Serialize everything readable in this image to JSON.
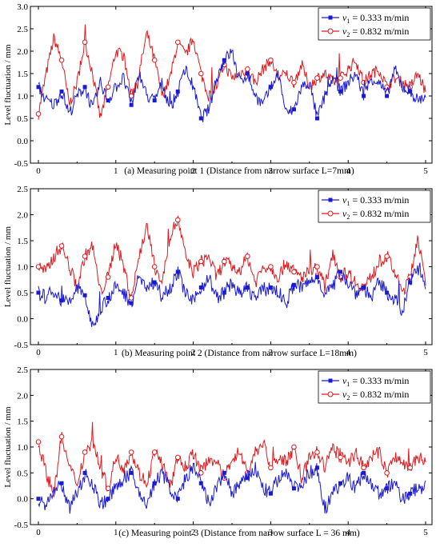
{
  "charts": [
    {
      "caption": "(a) Measuring point 1 (Distance from narrow surface L=7mm)",
      "ylabel": "Level fluctuation / mm",
      "xlim": [
        0,
        5
      ],
      "ylim": [
        -0.5,
        3.0
      ],
      "yticks": [
        "3.0",
        "2.5",
        "2.0",
        "1.5",
        "1.0",
        "0.5",
        "0.0",
        "-0.5"
      ],
      "xticks": [
        "0",
        "1",
        "2",
        "3",
        "4",
        "5"
      ]
    },
    {
      "caption": "(b) Measuring point 2 (Distance from narrow surface L=18mm)",
      "ylabel": "Level fluctuation / mm",
      "xlim": [
        0,
        5
      ],
      "ylim": [
        -0.5,
        2.5
      ],
      "yticks": [
        "2.5",
        "2.0",
        "1.5",
        "1.0",
        "0.5",
        "0.0",
        "-0.5"
      ],
      "xticks": [
        "0",
        "1",
        "2",
        "3",
        "4",
        "5"
      ]
    },
    {
      "caption": "(c) Measuring point 3 (Distance from narrow surface L = 36 mm)",
      "ylabel": "Level fluctuation / mm",
      "xlim": [
        0,
        5
      ],
      "ylim": [
        -0.5,
        2.5
      ],
      "yticks": [
        "2.5",
        "2.0",
        "1.5",
        "1.0",
        "0.5",
        "0.0",
        "-0.5"
      ],
      "xticks": [
        "0",
        "1",
        "2",
        "3",
        "4",
        "5"
      ]
    }
  ],
  "legend": {
    "v1_symbol": "v",
    "v1_sub": "1",
    "v1_value": " = 0.333 m/min",
    "v2_symbol": "v",
    "v2_sub": "2",
    "v2_value": " = 0.832 m/min"
  },
  "colors": {
    "v1": "#1a1ad6",
    "v2": "#e0191e"
  },
  "chart_data": [
    {
      "type": "line",
      "xlim": [
        0,
        5
      ],
      "ylim": [
        -0.5,
        3.0
      ],
      "series": [
        {
          "name": "v1 = 0.333 m/min",
          "x": [
            0,
            0.1,
            0.2,
            0.3,
            0.4,
            0.5,
            0.6,
            0.7,
            0.8,
            0.9,
            1.0,
            1.1,
            1.2,
            1.3,
            1.4,
            1.5,
            1.6,
            1.7,
            1.8,
            1.9,
            2.0,
            2.1,
            2.2,
            2.3,
            2.4,
            2.5,
            2.6,
            2.7,
            2.8,
            2.9,
            3.0,
            3.1,
            3.2,
            3.3,
            3.4,
            3.5,
            3.6,
            3.7,
            3.8,
            3.9,
            4.0,
            4.1,
            4.2,
            4.3,
            4.4,
            4.5,
            4.6,
            4.7,
            4.8,
            4.9,
            5.0
          ],
          "y": [
            1.2,
            0.9,
            0.8,
            1.1,
            0.6,
            1.0,
            1.2,
            0.7,
            1.3,
            0.9,
            1.2,
            1.4,
            0.8,
            1.5,
            1.0,
            0.9,
            1.3,
            0.7,
            1.1,
            1.6,
            1.2,
            0.5,
            0.7,
            1.4,
            1.8,
            2.0,
            1.3,
            1.5,
            1.0,
            0.8,
            1.2,
            1.5,
            0.6,
            0.7,
            1.2,
            1.3,
            0.5,
            1.0,
            1.4,
            1.1,
            1.3,
            1.5,
            1.0,
            1.4,
            1.3,
            1.0,
            1.6,
            1.2,
            1.1,
            0.9,
            1.0
          ]
        },
        {
          "name": "v2 = 0.832 m/min",
          "x": [
            0,
            0.1,
            0.2,
            0.3,
            0.4,
            0.5,
            0.6,
            0.7,
            0.8,
            0.9,
            1.0,
            1.1,
            1.2,
            1.3,
            1.4,
            1.5,
            1.6,
            1.7,
            1.8,
            1.9,
            2.0,
            2.1,
            2.2,
            2.3,
            2.4,
            2.5,
            2.6,
            2.7,
            2.8,
            2.9,
            3.0,
            3.1,
            3.2,
            3.3,
            3.4,
            3.5,
            3.6,
            3.7,
            3.8,
            3.9,
            4.0,
            4.1,
            4.2,
            4.3,
            4.4,
            4.5,
            4.6,
            4.7,
            4.8,
            4.9,
            5.0
          ],
          "y": [
            0.6,
            1.5,
            2.3,
            1.8,
            0.8,
            1.3,
            2.2,
            1.5,
            0.5,
            1.2,
            2.0,
            1.9,
            1.0,
            1.5,
            2.4,
            1.8,
            1.0,
            1.4,
            2.2,
            1.9,
            2.3,
            1.5,
            1.0,
            1.2,
            1.7,
            1.4,
            1.5,
            1.6,
            1.3,
            1.6,
            1.8,
            1.4,
            1.5,
            1.3,
            1.7,
            1.2,
            1.4,
            1.5,
            1.3,
            1.4,
            1.6,
            1.8,
            1.3,
            1.5,
            1.6,
            1.2,
            1.4,
            1.3,
            1.2,
            1.5,
            1.1
          ]
        }
      ]
    },
    {
      "type": "line",
      "xlim": [
        0,
        5
      ],
      "ylim": [
        -0.5,
        2.5
      ],
      "series": [
        {
          "name": "v1 = 0.333 m/min",
          "x": [
            0,
            0.1,
            0.2,
            0.3,
            0.4,
            0.5,
            0.6,
            0.7,
            0.8,
            0.9,
            1.0,
            1.1,
            1.2,
            1.3,
            1.4,
            1.5,
            1.6,
            1.7,
            1.8,
            1.9,
            2.0,
            2.1,
            2.2,
            2.3,
            2.4,
            2.5,
            2.6,
            2.7,
            2.8,
            2.9,
            3.0,
            3.1,
            3.2,
            3.3,
            3.4,
            3.5,
            3.6,
            3.7,
            3.8,
            3.9,
            4.0,
            4.1,
            4.2,
            4.3,
            4.4,
            4.5,
            4.6,
            4.7,
            4.8,
            4.9,
            5.0
          ],
          "y": [
            0.5,
            0.4,
            0.55,
            0.35,
            0.3,
            0.6,
            0.45,
            -0.2,
            0.2,
            0.4,
            0.6,
            0.5,
            0.3,
            0.8,
            0.6,
            0.7,
            0.5,
            0.6,
            0.9,
            0.5,
            0.3,
            0.6,
            0.8,
            0.4,
            0.5,
            0.7,
            0.45,
            0.6,
            0.4,
            0.55,
            0.6,
            0.5,
            0.3,
            0.65,
            0.6,
            0.7,
            0.8,
            0.5,
            0.6,
            0.9,
            0.7,
            0.5,
            0.6,
            0.4,
            0.7,
            0.5,
            0.4,
            0.1,
            0.7,
            1.1,
            0.6
          ]
        },
        {
          "name": "v2 = 0.832 m/min",
          "x": [
            0,
            0.1,
            0.2,
            0.3,
            0.4,
            0.5,
            0.6,
            0.7,
            0.8,
            0.9,
            1.0,
            1.1,
            1.2,
            1.3,
            1.4,
            1.5,
            1.6,
            1.7,
            1.8,
            1.9,
            2.0,
            2.1,
            2.2,
            2.3,
            2.4,
            2.5,
            2.6,
            2.7,
            2.8,
            2.9,
            3.0,
            3.1,
            3.2,
            3.3,
            3.4,
            3.5,
            3.6,
            3.7,
            3.8,
            3.9,
            4.0,
            4.1,
            4.2,
            4.3,
            4.4,
            4.5,
            4.6,
            4.7,
            4.8,
            4.9,
            5.0
          ],
          "y": [
            1.0,
            0.9,
            1.2,
            1.4,
            1.0,
            0.6,
            1.2,
            1.4,
            0.5,
            0.8,
            1.5,
            1.0,
            0.4,
            1.2,
            1.8,
            1.0,
            0.7,
            1.6,
            1.9,
            1.2,
            0.9,
            1.1,
            1.2,
            0.8,
            1.1,
            1.0,
            0.9,
            1.2,
            0.7,
            1.0,
            1.0,
            0.8,
            1.1,
            0.9,
            0.8,
            0.9,
            1.0,
            0.6,
            1.3,
            0.8,
            0.9,
            0.7,
            0.6,
            0.8,
            1.1,
            1.2,
            0.9,
            0.5,
            0.8,
            1.6,
            0.6
          ]
        }
      ]
    },
    {
      "type": "line",
      "xlim": [
        0,
        5
      ],
      "ylim": [
        -0.5,
        2.5
      ],
      "series": [
        {
          "name": "v1 = 0.333 m/min",
          "x": [
            0,
            0.1,
            0.2,
            0.3,
            0.4,
            0.5,
            0.6,
            0.7,
            0.8,
            0.9,
            1.0,
            1.1,
            1.2,
            1.3,
            1.4,
            1.5,
            1.6,
            1.7,
            1.8,
            1.9,
            2.0,
            2.1,
            2.2,
            2.3,
            2.4,
            2.5,
            2.6,
            2.7,
            2.8,
            2.9,
            3.0,
            3.1,
            3.2,
            3.3,
            3.4,
            3.5,
            3.6,
            3.7,
            3.8,
            3.9,
            4.0,
            4.1,
            4.2,
            4.3,
            4.4,
            4.5,
            4.6,
            4.7,
            4.8,
            4.9,
            5.0
          ],
          "y": [
            0.0,
            -0.1,
            0.1,
            0.3,
            -0.2,
            0.1,
            0.5,
            0.3,
            -0.1,
            0.0,
            0.2,
            0.4,
            0.5,
            0.1,
            -0.1,
            0.3,
            0.5,
            0.2,
            0.0,
            0.4,
            0.6,
            0.3,
            -0.1,
            0.2,
            0.5,
            0.1,
            0.3,
            0.4,
            0.6,
            0.2,
            0.1,
            0.4,
            0.5,
            0.2,
            0.3,
            0.5,
            0.6,
            -0.2,
            0.1,
            0.3,
            0.4,
            0.2,
            0.5,
            0.3,
            0.1,
            0.2,
            0.3,
            0.0,
            0.1,
            0.2,
            0.25
          ]
        },
        {
          "name": "v2 = 0.832 m/min",
          "x": [
            0,
            0.1,
            0.2,
            0.3,
            0.4,
            0.5,
            0.6,
            0.7,
            0.8,
            0.9,
            1.0,
            1.1,
            1.2,
            1.3,
            1.4,
            1.5,
            1.6,
            1.7,
            1.8,
            1.9,
            2.0,
            2.1,
            2.2,
            2.3,
            2.4,
            2.5,
            2.6,
            2.7,
            2.8,
            2.9,
            3.0,
            3.1,
            3.2,
            3.3,
            3.4,
            3.5,
            3.6,
            3.7,
            3.8,
            3.9,
            4.0,
            4.1,
            4.2,
            4.3,
            4.4,
            4.5,
            4.6,
            4.7,
            4.8,
            4.9,
            5.0
          ],
          "y": [
            1.1,
            0.5,
            0.1,
            1.2,
            0.6,
            0.3,
            0.9,
            1.1,
            0.6,
            0.2,
            0.8,
            0.6,
            0.9,
            0.5,
            0.3,
            0.9,
            0.7,
            0.2,
            0.8,
            0.6,
            0.9,
            0.5,
            0.8,
            0.7,
            0.4,
            0.8,
            0.9,
            0.5,
            0.9,
            1.1,
            0.6,
            0.8,
            0.7,
            1.0,
            0.4,
            0.8,
            0.9,
            0.6,
            1.0,
            0.8,
            0.7,
            0.9,
            0.6,
            0.8,
            0.9,
            0.5,
            0.8,
            0.7,
            0.6,
            0.8,
            0.7
          ]
        }
      ]
    }
  ]
}
